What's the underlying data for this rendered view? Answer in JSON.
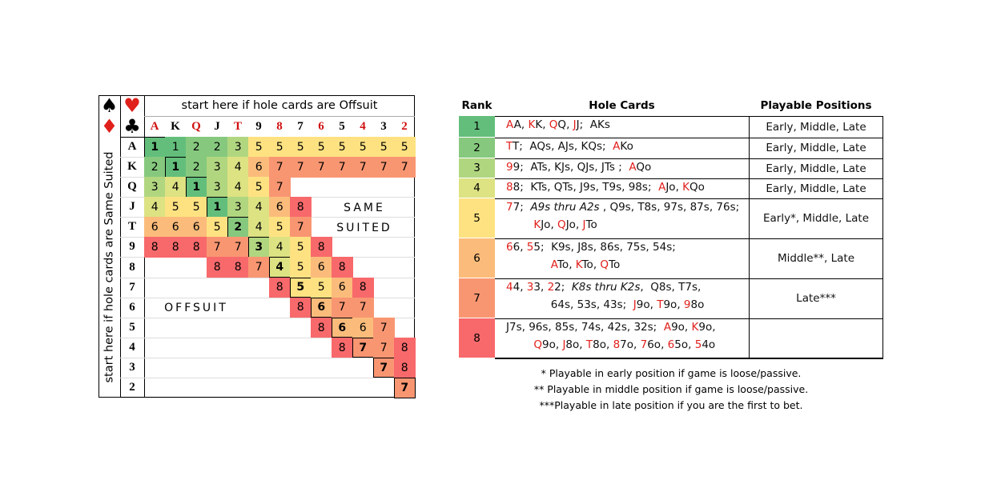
{
  "grid": {
    "suits": [
      "♠",
      "♥",
      "♦",
      "♣"
    ],
    "top_label": "start here if hole cards are Offsuit",
    "side_label": "start here if hole cards are Same Suited",
    "ranks": [
      "A",
      "K",
      "Q",
      "J",
      "T",
      "9",
      "8",
      "7",
      "6",
      "5",
      "4",
      "3",
      "2"
    ],
    "rows": [
      [
        1,
        1,
        2,
        2,
        3,
        5,
        5,
        5,
        5,
        5,
        5,
        5,
        5
      ],
      [
        2,
        1,
        2,
        3,
        4,
        6,
        7,
        7,
        7,
        7,
        7,
        7,
        7
      ],
      [
        3,
        4,
        1,
        3,
        4,
        5,
        7,
        null,
        null,
        null,
        null,
        null,
        null
      ],
      [
        4,
        5,
        5,
        1,
        3,
        4,
        6,
        8,
        null,
        null,
        null,
        null,
        null
      ],
      [
        6,
        6,
        6,
        5,
        2,
        4,
        5,
        7,
        null,
        null,
        null,
        null,
        null
      ],
      [
        8,
        8,
        8,
        7,
        7,
        3,
        4,
        5,
        8,
        null,
        null,
        null,
        null
      ],
      [
        null,
        null,
        null,
        8,
        8,
        7,
        4,
        5,
        6,
        8,
        null,
        null,
        null
      ],
      [
        null,
        null,
        null,
        null,
        null,
        null,
        8,
        5,
        5,
        6,
        8,
        null,
        null
      ],
      [
        null,
        null,
        null,
        null,
        null,
        null,
        null,
        8,
        6,
        7,
        7,
        null,
        null
      ],
      [
        null,
        null,
        null,
        null,
        null,
        null,
        null,
        null,
        8,
        6,
        6,
        7,
        null
      ],
      [
        null,
        null,
        null,
        null,
        null,
        null,
        null,
        null,
        null,
        8,
        7,
        7,
        8
      ],
      [
        null,
        null,
        null,
        null,
        null,
        null,
        null,
        null,
        null,
        null,
        null,
        7,
        8
      ],
      [
        null,
        null,
        null,
        null,
        null,
        null,
        null,
        null,
        null,
        null,
        null,
        null,
        7
      ]
    ],
    "same_suited_label": [
      "SAME",
      "SUITED"
    ],
    "offsuit_label": "OFFSUIT"
  },
  "table": {
    "headers": [
      "Rank",
      "Hole Cards",
      "Playable Positions"
    ],
    "rows": [
      {
        "rank": 1,
        "color": "#63be7b",
        "hole_cards": [
          "AA, KK, QQ, JJ;  AKs"
        ],
        "positions": "Early, Middle, Late"
      },
      {
        "rank": 2,
        "color": "#86c97e",
        "hole_cards": [
          "TT;  AQs, AJs, KQs;  AKo"
        ],
        "positions": "Early, Middle, Late"
      },
      {
        "rank": 3,
        "color": "#b1d680",
        "hole_cards": [
          "99;  ATs, KJs, QJs, JTs ;  AQo"
        ],
        "positions": "Early, Middle, Late"
      },
      {
        "rank": 4,
        "color": "#dde283",
        "hole_cards": [
          "88;  KTs, QTs, J9s, T9s, 98s;  AJo, KQo"
        ],
        "positions": "Early, Middle, Late"
      },
      {
        "rank": 5,
        "color": "#fee282",
        "hole_cards": [
          "77;  A9s thru A2s , Q9s, T8s, 97s, 87s, 76s;",
          "        KJo, QJo, JTo"
        ],
        "positions": "Early*, Middle, Late"
      },
      {
        "rank": 6,
        "color": "#fbbc7b",
        "hole_cards": [
          "66, 55;  K9s, J8s, 86s, 75s, 54s;",
          "             ATo, KTo, QTo"
        ],
        "positions": "Middle**, Late"
      },
      {
        "rank": 7,
        "color": "#f99672",
        "hole_cards": [
          "44, 33, 22;  K8s thru K2s,  Q8s, T7s,",
          "             64s, 53s, 43s;  J9o, T9o, 98o"
        ],
        "positions": "Late***"
      },
      {
        "rank": 8,
        "color": "#f8696b",
        "hole_cards": [
          "J7s, 96s, 85s, 74s, 42s, 32s;  A9o, K9o,",
          "        Q9o, J8o, T8o, 87o, 76o, 65o, 54o"
        ],
        "positions": null
      }
    ]
  },
  "footnotes": [
    "* Playable in early position if game is loose/passive.",
    "** Playable in middle position if game is loose/passive.",
    "***Playable in late position if you are the first to bet."
  ]
}
